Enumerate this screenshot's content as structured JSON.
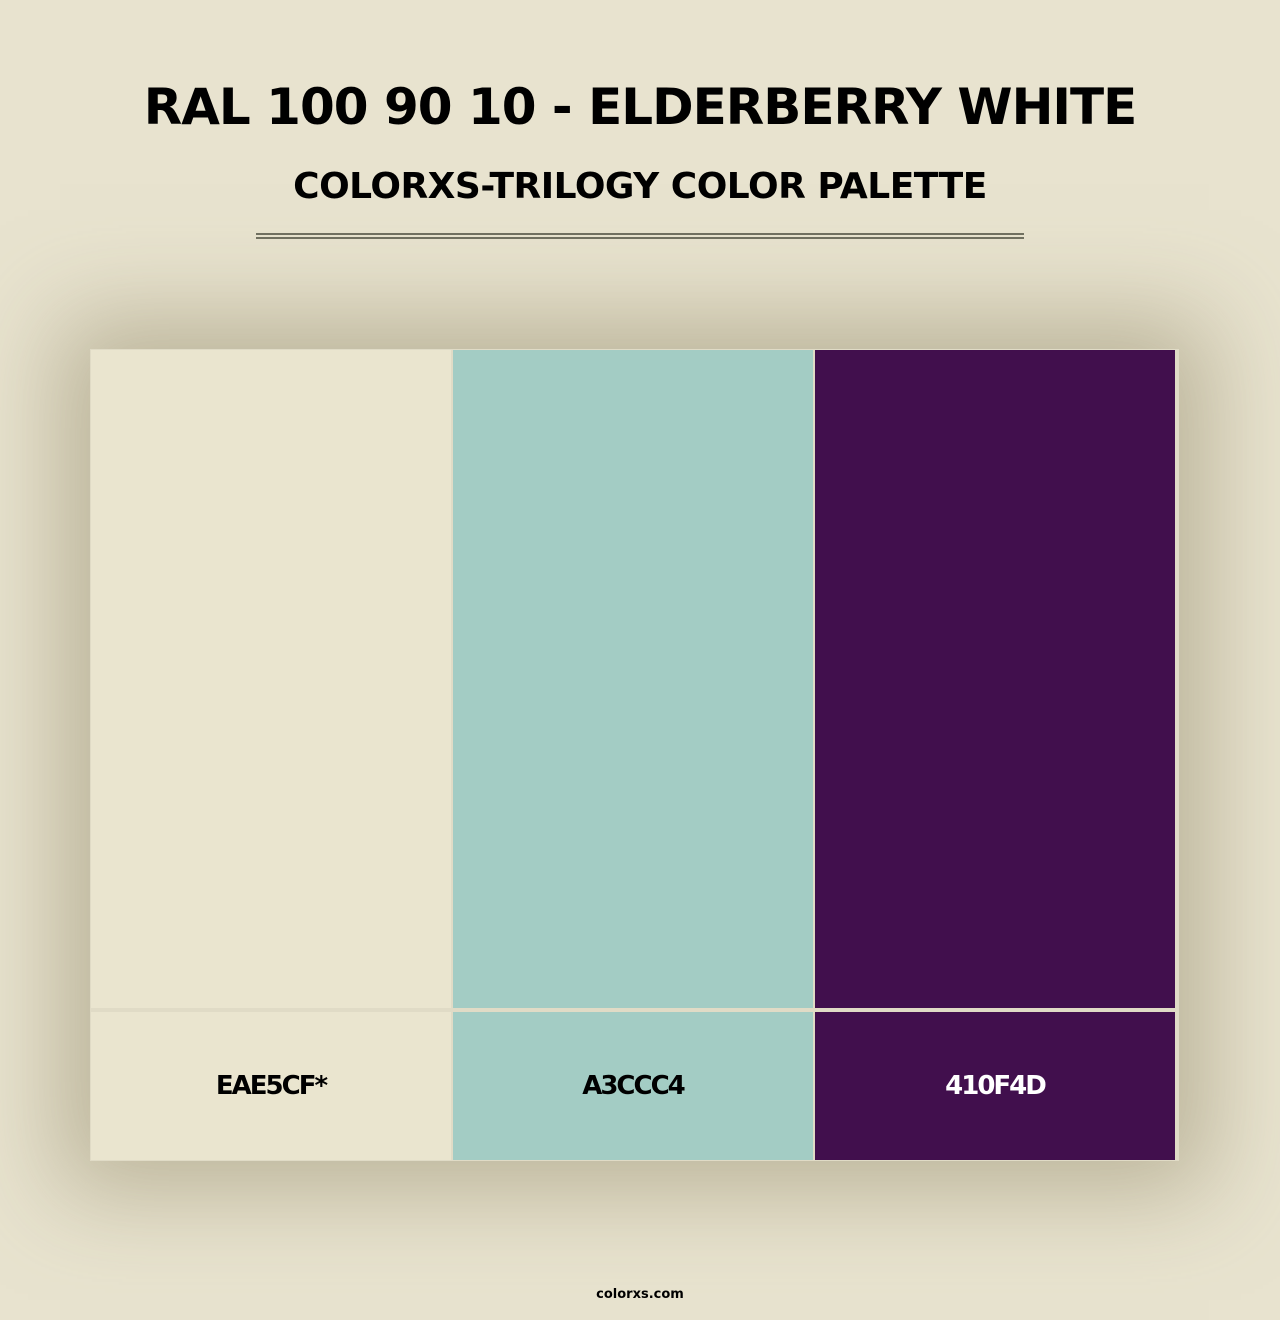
{
  "header": {
    "title": "RAL 100 90 10 - ELDERBERRY WHITE",
    "subtitle": "COLORXS-TRILOGY COLOR PALETTE"
  },
  "palette": [
    {
      "hex": "EAE5CF*",
      "color": "#eae5cf",
      "text_color": "#000000"
    },
    {
      "hex": "A3CCC4",
      "color": "#a3ccc4",
      "text_color": "#000000"
    },
    {
      "hex": "410F4D",
      "color": "#410f4d",
      "text_color": "#ffffff"
    }
  ],
  "footer": {
    "site": "colorxs.com"
  }
}
